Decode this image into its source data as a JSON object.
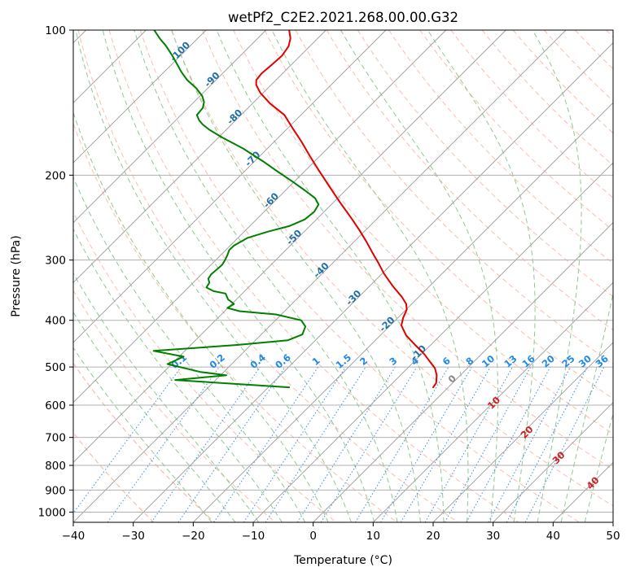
{
  "chart_data": {
    "type": "line",
    "title": "wetPf2_C2E2.2021.268.00.00.G32",
    "xlabel": "Temperature (°C)",
    "ylabel": "Pressure (hPa)",
    "xlim": [
      -40,
      50
    ],
    "ylim": [
      1050,
      100
    ],
    "y_scale": "log",
    "x_ticks": [
      -40,
      -30,
      -20,
      -10,
      0,
      10,
      20,
      30,
      40,
      50
    ],
    "y_ticks": [
      100,
      200,
      300,
      400,
      500,
      600,
      700,
      800,
      900,
      1000
    ],
    "grid": true,
    "skew_t": true,
    "colors": {
      "temperature": "#e00000",
      "dewpoint": "#008000",
      "isotherm": "#9a9a9a",
      "dry_adiabat": "#f5a98f",
      "moist_adiabat": "#8fc98f",
      "mixing_ratio": "#3a8fdc",
      "isotherm_label": "#1f6fa8",
      "mixing_label": "#2288e6",
      "adiabat_label": "#d02020"
    },
    "isotherm_labels": [
      {
        "t": -100,
        "p": 112,
        "text": "-100"
      },
      {
        "t": -90,
        "p": 128,
        "text": "-90"
      },
      {
        "t": -80,
        "p": 153,
        "text": "-80"
      },
      {
        "t": -70,
        "p": 187,
        "text": "-70"
      },
      {
        "t": -60,
        "p": 228,
        "text": "-60"
      },
      {
        "t": -50,
        "p": 272,
        "text": "-50"
      },
      {
        "t": -40,
        "p": 318,
        "text": "-40"
      },
      {
        "t": -30,
        "p": 363,
        "text": "-30"
      },
      {
        "t": -20,
        "p": 412,
        "text": "-20"
      },
      {
        "t": -10,
        "p": 472,
        "text": "-10"
      },
      {
        "t": 0,
        "p": 535,
        "text": "0"
      }
    ],
    "mixing_ratio_labels": [
      "0.1",
      "0.2",
      "0.4",
      "0.6",
      "1",
      "1.5",
      "2",
      "3",
      "4",
      "6",
      "8",
      "10",
      "13",
      "16",
      "20",
      "25",
      "30",
      "36"
    ],
    "mixing_ratio_values": [
      0.1,
      0.2,
      0.4,
      0.6,
      1,
      1.5,
      2,
      3,
      4,
      6,
      8,
      10,
      13,
      16,
      20,
      25,
      30,
      36
    ],
    "moist_adiabat_labels": [
      {
        "text": "10",
        "x": 30.5,
        "p": 600
      },
      {
        "text": "20",
        "x": 36.0,
        "p": 690
      },
      {
        "text": "30",
        "x": 41.3,
        "p": 780
      },
      {
        "text": "40",
        "x": 47.0,
        "p": 880
      }
    ],
    "series": [
      {
        "name": "Temperature",
        "points": [
          [
            20,
            551
          ],
          [
            20.5,
            540
          ],
          [
            20.6,
            520
          ],
          [
            20.3,
            503
          ],
          [
            19.5,
            488
          ],
          [
            18.5,
            470
          ],
          [
            17.0,
            450
          ],
          [
            15.5,
            430
          ],
          [
            14.7,
            410
          ],
          [
            15.0,
            395
          ],
          [
            15.6,
            380
          ],
          [
            15.5,
            370
          ],
          [
            14.8,
            358
          ],
          [
            13.3,
            340
          ],
          [
            11.8,
            320
          ],
          [
            10.8,
            303
          ],
          [
            9.9,
            290
          ],
          [
            8.9,
            275
          ],
          [
            7.7,
            260
          ],
          [
            6.3,
            245
          ],
          [
            4.5,
            228
          ],
          [
            2.8,
            212
          ],
          [
            1.0,
            196
          ],
          [
            -0.5,
            183
          ],
          [
            -2.0,
            170
          ],
          [
            -3.4,
            160
          ],
          [
            -4.8,
            150
          ],
          [
            -7.2,
            142
          ],
          [
            -8.8,
            135
          ],
          [
            -9.5,
            130
          ],
          [
            -9.5,
            127
          ],
          [
            -8.6,
            123
          ],
          [
            -6.9,
            118
          ],
          [
            -5.2,
            113
          ],
          [
            -4.1,
            108
          ],
          [
            -3.8,
            104
          ],
          [
            -4.0,
            100
          ]
        ]
      },
      {
        "name": "Dewpoint",
        "points": [
          [
            -4.0,
            551
          ],
          [
            -23.0,
            532
          ],
          [
            -14.5,
            520
          ],
          [
            -18.8,
            512
          ],
          [
            -24.3,
            493
          ],
          [
            -21.6,
            476
          ],
          [
            -26.6,
            463
          ],
          [
            -12.7,
            450
          ],
          [
            -4.2,
            440
          ],
          [
            -1.8,
            428
          ],
          [
            -1.3,
            412
          ],
          [
            -2.0,
            400
          ],
          [
            -6.2,
            389
          ],
          [
            -12.3,
            383
          ],
          [
            -14.3,
            377
          ],
          [
            -13.2,
            370
          ],
          [
            -14.2,
            362
          ],
          [
            -14.6,
            352
          ],
          [
            -16.6,
            348
          ],
          [
            -17.8,
            342
          ],
          [
            -17.3,
            334
          ],
          [
            -17.5,
            328
          ],
          [
            -17.0,
            321
          ],
          [
            -16.1,
            314
          ],
          [
            -15.2,
            307
          ],
          [
            -14.7,
            300
          ],
          [
            -14.3,
            293
          ],
          [
            -14.0,
            286
          ],
          [
            -13.2,
            280
          ],
          [
            -11.0,
            270
          ],
          [
            -7.6,
            262
          ],
          [
            -4.0,
            255
          ],
          [
            -1.4,
            247
          ],
          [
            0.2,
            238
          ],
          [
            0.9,
            230
          ],
          [
            0.3,
            223
          ],
          [
            -1.4,
            215
          ],
          [
            -3.5,
            206
          ],
          [
            -5.8,
            197
          ],
          [
            -8.4,
            187
          ],
          [
            -11.7,
            176
          ],
          [
            -15.2,
            167
          ],
          [
            -17.3,
            161
          ],
          [
            -18.4,
            157
          ],
          [
            -19.0,
            154
          ],
          [
            -19.4,
            150
          ],
          [
            -19.0,
            148
          ],
          [
            -18.4,
            145
          ],
          [
            -18.2,
            141
          ],
          [
            -18.5,
            137
          ],
          [
            -19.5,
            132
          ],
          [
            -21.0,
            127
          ],
          [
            -22.0,
            122
          ],
          [
            -22.8,
            117
          ],
          [
            -23.5,
            113
          ],
          [
            -24.5,
            108
          ],
          [
            -25.6,
            104
          ],
          [
            -26.5,
            100
          ]
        ]
      }
    ]
  }
}
